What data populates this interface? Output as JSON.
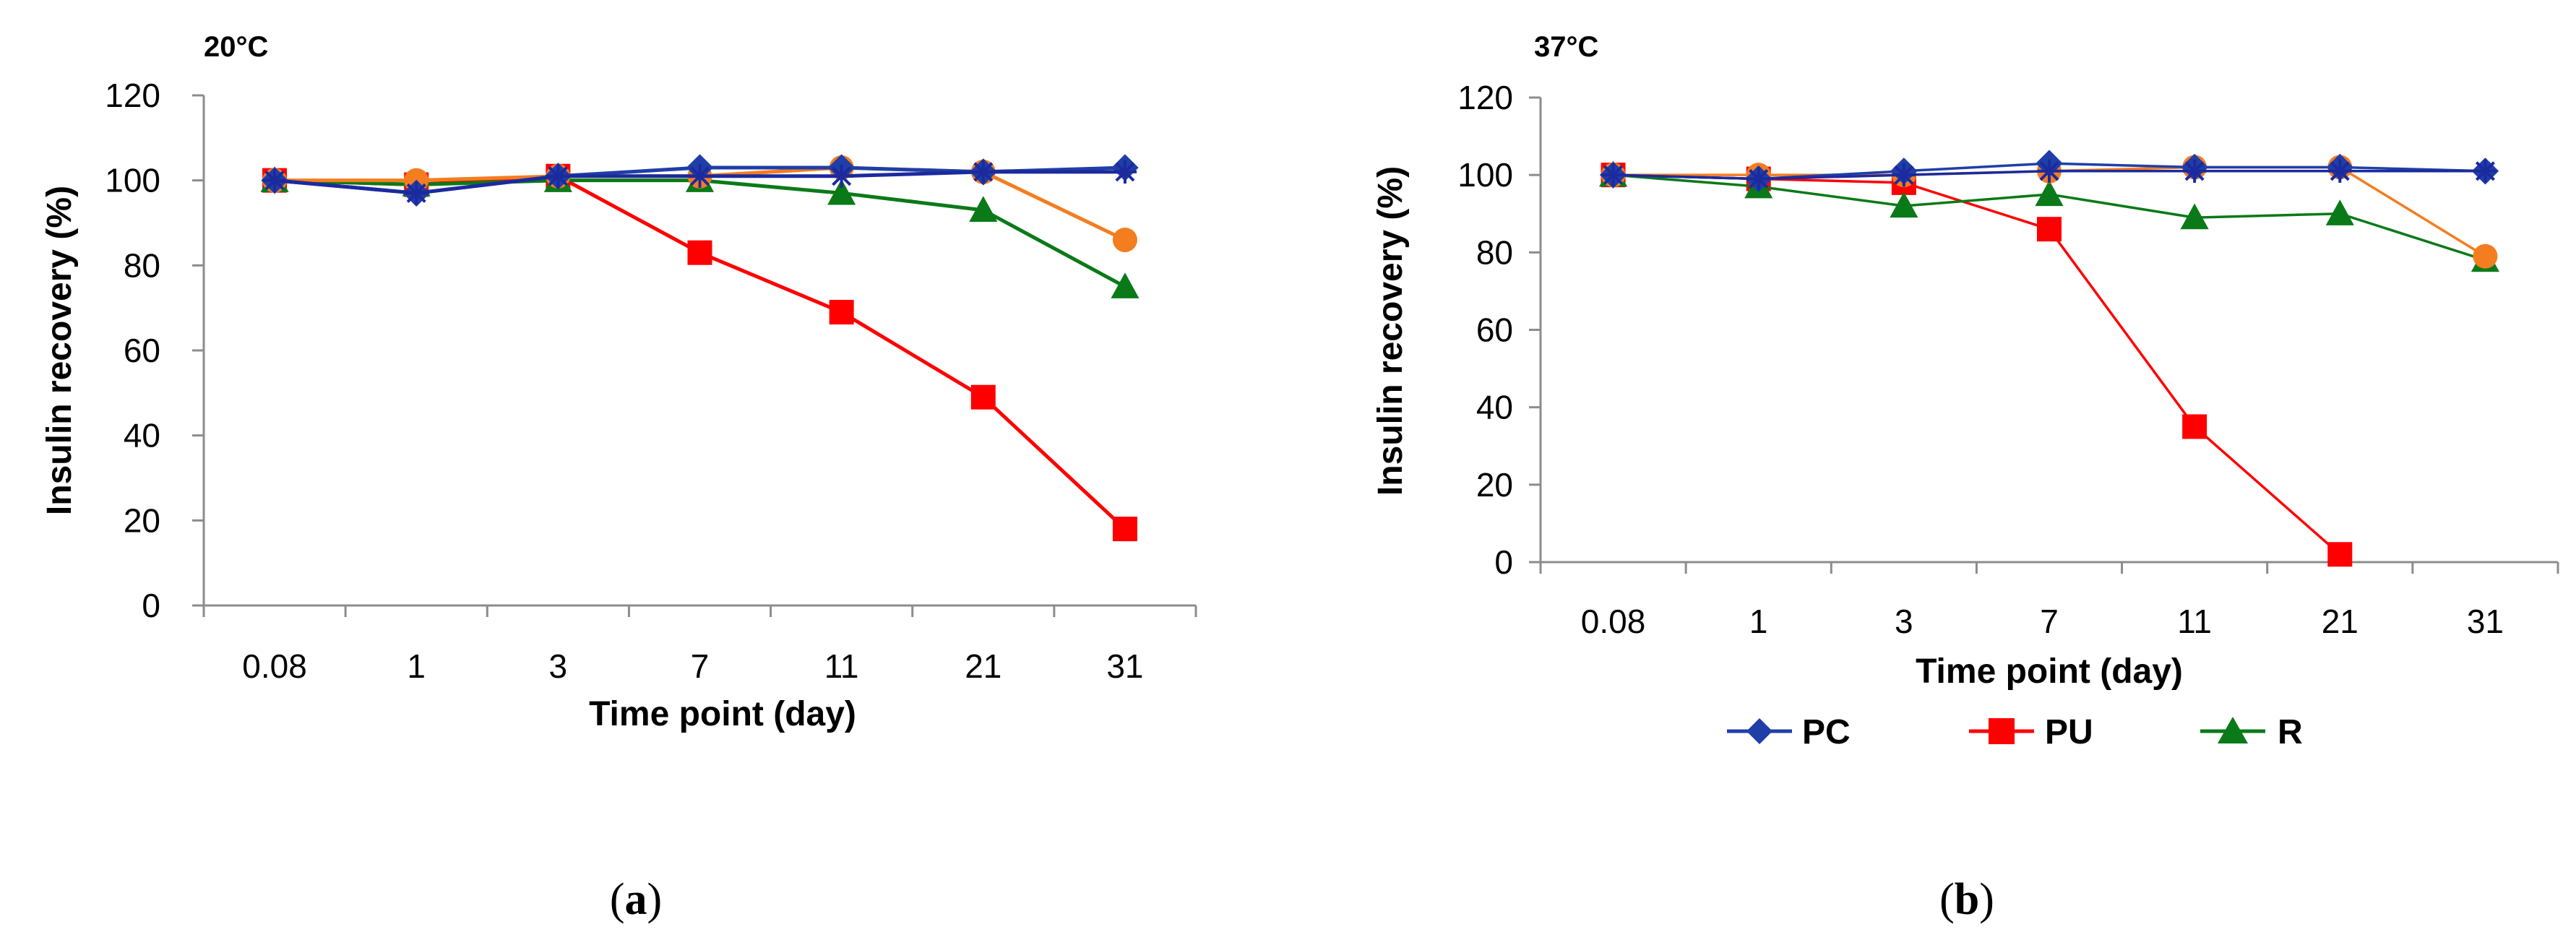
{
  "chart_data": [
    {
      "type": "line",
      "panel": "a",
      "caption_label": "a",
      "title": "20°C",
      "xlabel": "Time point (day)",
      "ylabel": "Insulin recovery (%)",
      "categories": [
        "0.08",
        "1",
        "3",
        "7",
        "11",
        "21",
        "31"
      ],
      "ylim": [
        0,
        120
      ],
      "yticks": [
        "0",
        "20",
        "40",
        "60",
        "80",
        "100",
        "120"
      ],
      "grid": false,
      "series": [
        {
          "name": "PC",
          "color": "#1f3ea8",
          "marker": "diamond",
          "values": [
            100,
            97,
            101,
            103,
            103,
            102,
            103
          ]
        },
        {
          "name": "PU",
          "color": "#ff0000",
          "marker": "square",
          "values": [
            100,
            99,
            101,
            83,
            69,
            49,
            18
          ]
        },
        {
          "name": "R",
          "color": "#0a7a18",
          "marker": "triangle",
          "values": [
            100,
            99,
            100,
            100,
            97,
            93,
            75
          ]
        },
        {
          "name": "",
          "color": "#f47d20",
          "marker": "circle",
          "values": [
            100,
            100,
            101,
            101,
            103,
            102,
            86
          ]
        },
        {
          "name": "",
          "color": "#1c2a9e",
          "marker": "star",
          "values": [
            100,
            97,
            101,
            101,
            101,
            102,
            102
          ]
        }
      ]
    },
    {
      "type": "line",
      "panel": "b",
      "caption_label": "b",
      "title": "37°C",
      "xlabel": "Time point (day)",
      "ylabel": "Insulin recovery (%)",
      "categories": [
        "0.08",
        "1",
        "3",
        "7",
        "11",
        "21",
        "31"
      ],
      "ylim": [
        0,
        120
      ],
      "yticks": [
        "0",
        "20",
        "40",
        "60",
        "80",
        "100",
        "120"
      ],
      "grid": false,
      "legend": {
        "position": "bottom",
        "entries": [
          "PC",
          "PU",
          "R"
        ]
      },
      "series": [
        {
          "name": "PC",
          "color": "#1f3ea8",
          "marker": "diamond",
          "values": [
            100,
            99,
            101,
            103,
            102,
            102,
            101
          ]
        },
        {
          "name": "PU",
          "color": "#ff0000",
          "marker": "square",
          "values": [
            100,
            99,
            98,
            86,
            35,
            2,
            null
          ]
        },
        {
          "name": "R",
          "color": "#0a7a18",
          "marker": "triangle",
          "values": [
            100,
            97,
            92,
            95,
            89,
            90,
            78
          ]
        },
        {
          "name": "",
          "color": "#f47d20",
          "marker": "circle",
          "values": [
            100,
            100,
            100,
            101,
            102,
            102,
            79
          ]
        },
        {
          "name": "",
          "color": "#1c2a9e",
          "marker": "star",
          "values": [
            100,
            99,
            100,
            101,
            101,
            101,
            101
          ]
        }
      ]
    }
  ]
}
